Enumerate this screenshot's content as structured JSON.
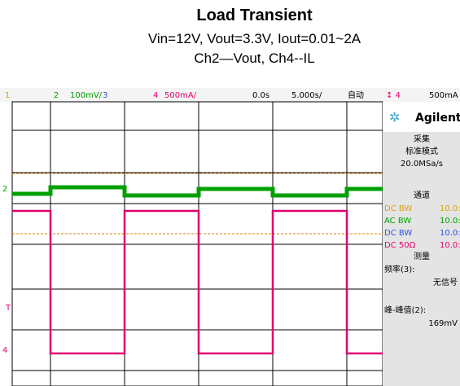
{
  "header": {
    "title": "Load Transient",
    "subtitle": "Vin=12V, Vout=3.3V, Iout=0.01~2A",
    "channels": "Ch2—Vout, Ch4--IL"
  },
  "scope": {
    "ch1": "1",
    "ch2": "2",
    "ch2_scale": "100mV/",
    "ch3": "3",
    "ch4": "4",
    "ch4_scale": "500mA/",
    "delay": "0.0s",
    "timebase": "5.000s/",
    "mode": "自动",
    "trig_src": "↕ 4",
    "trig_level": "500mA",
    "marker_ch2": "2",
    "marker_trig": "T",
    "marker_ch4": "4"
  },
  "panel": {
    "brand": "Agilent",
    "acq_title": "采集",
    "acq_mode": "标准模式",
    "acq_rate": "20.0MSa/s",
    "chan_title": "通道",
    "rows": [
      [
        "DC BW",
        "10.0:"
      ],
      [
        "AC BW",
        "10.0:"
      ],
      [
        "DC BW",
        "10.0:"
      ],
      [
        "DC  50Ω",
        "10.0:"
      ]
    ],
    "meas_title": "测量",
    "meas1": "频率(3):",
    "meas1_val": "无信号",
    "meas2": "峰-峰值(2):",
    "meas2_val": "169mV"
  }
}
